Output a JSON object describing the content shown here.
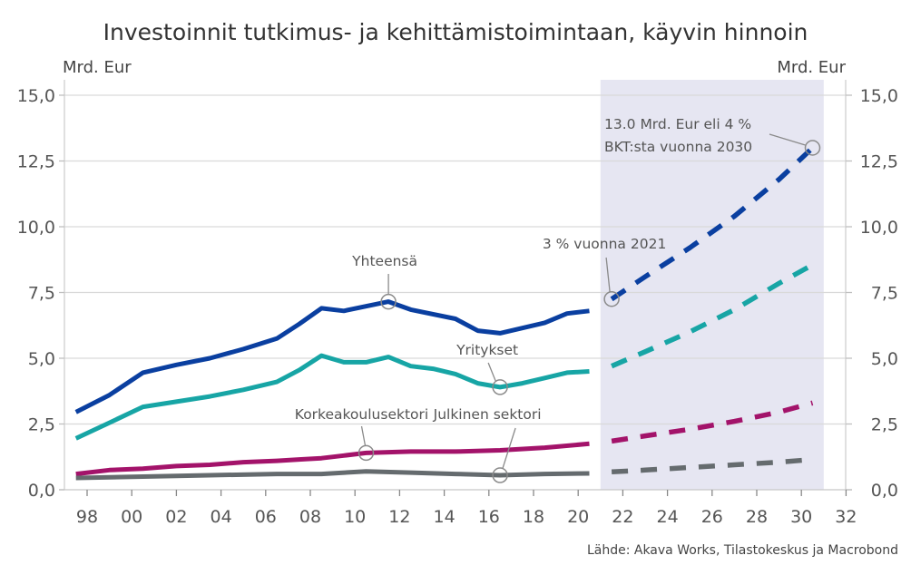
{
  "chart_data": {
    "type": "line",
    "title": "Investoinnit tutkimus- ja kehittämistoimintaan, käyvin hinnoin",
    "ylabel_left": "Mrd. Eur",
    "ylabel_right": "Mrd. Eur",
    "source": "Lähde: Akava Works, Tilastokeskus ja Macrobond",
    "ylim": [
      0,
      15
    ],
    "xlim": [
      1997,
      2032
    ],
    "y_ticks": [
      "0,0",
      "2,5",
      "5,0",
      "7,5",
      "10,0",
      "12,5",
      "15,0"
    ],
    "y_tick_values": [
      0,
      2.5,
      5,
      7.5,
      10,
      12.5,
      15
    ],
    "x_ticks": [
      "98",
      "00",
      "02",
      "04",
      "06",
      "08",
      "10",
      "12",
      "14",
      "16",
      "18",
      "20",
      "22",
      "24",
      "26",
      "28",
      "30",
      "32"
    ],
    "x_tick_values": [
      1998,
      2000,
      2002,
      2004,
      2006,
      2008,
      2010,
      2012,
      2014,
      2016,
      2018,
      2020,
      2022,
      2024,
      2026,
      2028,
      2030,
      2032
    ],
    "grid": true,
    "forecast_region": [
      2021,
      2031
    ],
    "colors": {
      "total": "#0a3fa0",
      "business": "#17a5a5",
      "higher_ed": "#a3136a",
      "public": "#656b6e",
      "shade": "#e6e6f2",
      "grid": "#d9d9d9",
      "callout": "#8a8a8a"
    },
    "series": [
      {
        "key": "total",
        "name": "Yhteensä",
        "x": [
          1997.5,
          1999,
          2000.5,
          2002,
          2003.5,
          2005,
          2006.5,
          2007.5,
          2008.5,
          2009.5,
          2011.5,
          2012.5,
          2014.5,
          2015.5,
          2016.5,
          2018.5,
          2019.5,
          2020.5
        ],
        "values": [
          2.95,
          3.6,
          4.45,
          4.75,
          5.0,
          5.35,
          5.75,
          6.3,
          6.9,
          6.8,
          7.15,
          6.85,
          6.5,
          6.05,
          5.95,
          6.35,
          6.7,
          6.8
        ],
        "forecast_x": [
          2021.5,
          2023,
          2025,
          2027,
          2029,
          2030.5
        ],
        "forecast_values": [
          7.25,
          8.1,
          9.2,
          10.4,
          11.8,
          13.0
        ]
      },
      {
        "key": "business",
        "name": "Yritykset",
        "x": [
          1997.5,
          1999,
          2000.5,
          2002,
          2003.5,
          2005,
          2006.5,
          2007.5,
          2008.5,
          2009.5,
          2010.5,
          2011.5,
          2012.5,
          2013.5,
          2014.5,
          2015.5,
          2016.5,
          2017.5,
          2018.5,
          2019.5,
          2020.5
        ],
        "values": [
          1.95,
          2.55,
          3.15,
          3.35,
          3.55,
          3.8,
          4.1,
          4.55,
          5.1,
          4.85,
          4.85,
          5.05,
          4.7,
          4.6,
          4.4,
          4.05,
          3.9,
          4.05,
          4.25,
          4.45,
          4.5
        ],
        "forecast_x": [
          2021.5,
          2023,
          2025,
          2027,
          2029,
          2030.5
        ],
        "forecast_values": [
          4.7,
          5.25,
          6.0,
          6.85,
          7.85,
          8.55
        ]
      },
      {
        "key": "higher_ed",
        "name": "Korkeakoulusektori",
        "x": [
          1997.5,
          1999,
          2000.5,
          2002,
          2003.5,
          2005,
          2006.5,
          2007.5,
          2008.5,
          2009.5,
          2010.5,
          2012.5,
          2014.5,
          2016.5,
          2018.5,
          2020.5
        ],
        "values": [
          0.6,
          0.75,
          0.8,
          0.9,
          0.95,
          1.05,
          1.1,
          1.15,
          1.2,
          1.3,
          1.4,
          1.45,
          1.45,
          1.5,
          1.6,
          1.75
        ],
        "forecast_x": [
          2021.5,
          2023,
          2025,
          2027,
          2029,
          2030.5
        ],
        "forecast_values": [
          1.85,
          2.05,
          2.3,
          2.6,
          2.95,
          3.3
        ]
      },
      {
        "key": "public",
        "name": "Julkinen sektori",
        "x": [
          1997.5,
          2000.5,
          2003.5,
          2006.5,
          2008.5,
          2010.5,
          2012.5,
          2014.5,
          2016.5,
          2018.5,
          2020.5
        ],
        "values": [
          0.45,
          0.5,
          0.55,
          0.6,
          0.6,
          0.7,
          0.65,
          0.6,
          0.55,
          0.6,
          0.62
        ],
        "forecast_x": [
          2021.5,
          2023,
          2025,
          2027,
          2029,
          2030.5
        ],
        "forecast_values": [
          0.68,
          0.75,
          0.85,
          0.95,
          1.05,
          1.15
        ]
      }
    ],
    "annotations": [
      {
        "text": "Yhteensä",
        "series": "total",
        "x": 2011.5,
        "y": 7.15
      },
      {
        "text": "Yritykset",
        "series": "business",
        "x": 2016.5,
        "y": 3.9
      },
      {
        "text": "Korkeakoulusektori",
        "series": "higher_ed",
        "x": 2010.5,
        "y": 1.4
      },
      {
        "text": "Julkinen sektori",
        "series": "public",
        "x": 2016.5,
        "y": 0.55
      },
      {
        "text": "3 % vuonna 2021",
        "series": "total",
        "x": 2021.5,
        "y": 7.25
      },
      {
        "text_lines": [
          "13.0 Mrd. Eur eli 4 %",
          "BKT:sta vuonna 2030"
        ],
        "series": "total",
        "x": 2030.5,
        "y": 13.0
      }
    ]
  }
}
